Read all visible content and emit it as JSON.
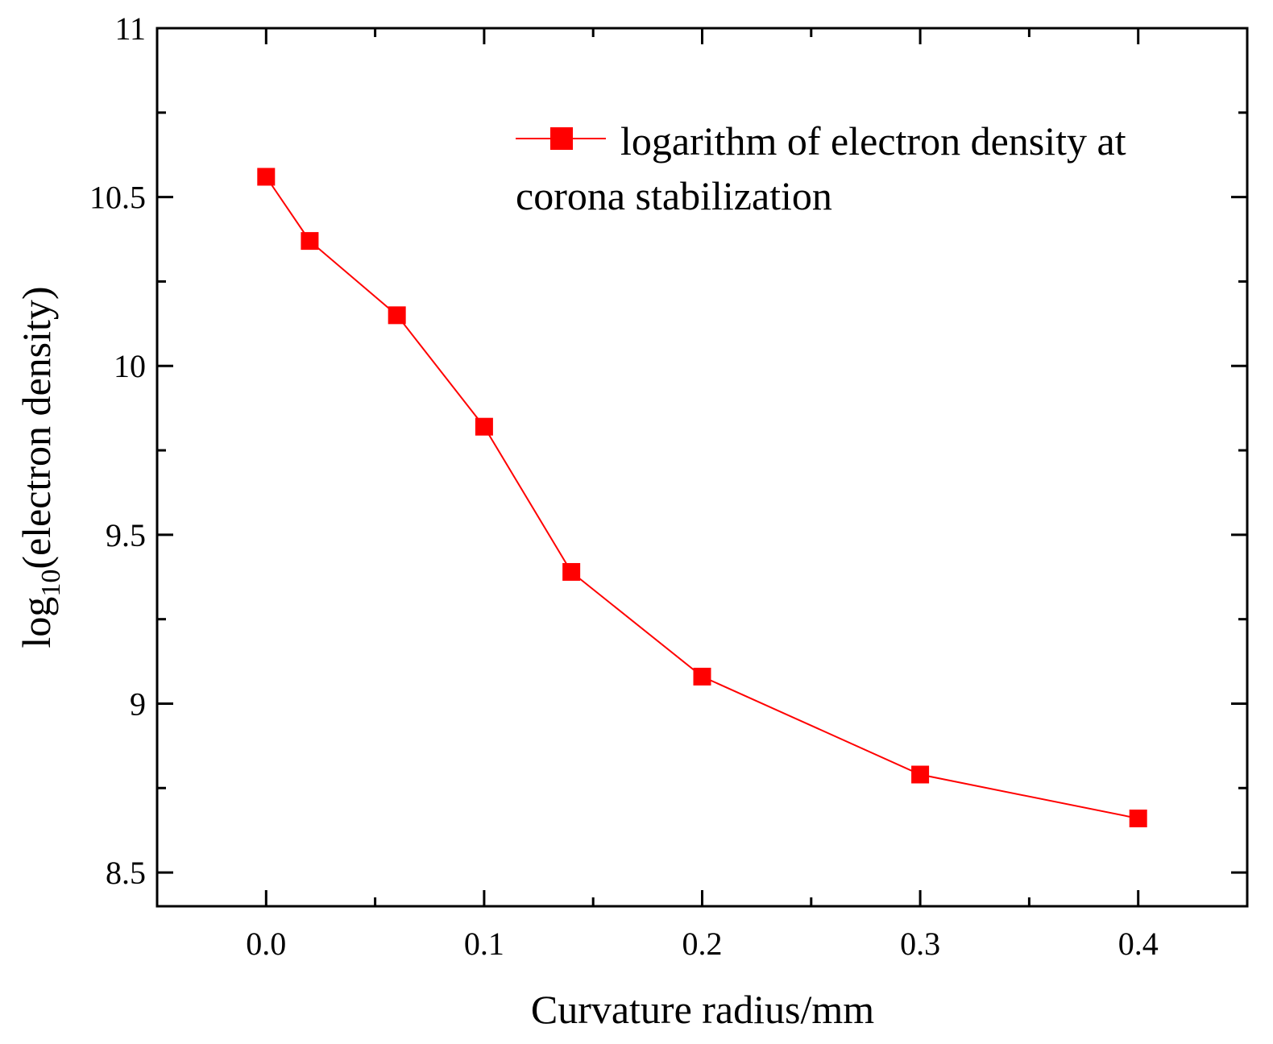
{
  "chart_data": {
    "type": "line",
    "title": "",
    "xlabel": "Curvature radius/mm",
    "ylabel": {
      "prefix": "log",
      "subscript": "10",
      "suffix": "(electron density)"
    },
    "xlim": [
      -0.05,
      0.45
    ],
    "ylim": [
      8.4,
      11.0
    ],
    "x_ticks": [
      0.0,
      0.1,
      0.2,
      0.3,
      0.4
    ],
    "x_tick_labels": [
      "0.0",
      "0.1",
      "0.2",
      "0.3",
      "0.4"
    ],
    "x_minor_ticks": [
      -0.05,
      0.05,
      0.15,
      0.25,
      0.35,
      0.45
    ],
    "y_ticks": [
      8.5,
      9.0,
      9.5,
      10.0,
      10.5,
      11.0
    ],
    "y_tick_labels": [
      "8.5",
      "9",
      "9.5",
      "10",
      "10.5",
      "11"
    ],
    "y_minor_ticks": [
      8.75,
      9.25,
      9.75,
      10.25,
      10.75
    ],
    "grid": false,
    "legend_position": "top-right",
    "series": [
      {
        "name": "logarithm of electron density at corona stabilization",
        "legend_lines": [
          "logarithm of electron density at",
          "corona stabilization"
        ],
        "color": "#ff0000",
        "marker": "square",
        "x": [
          0.0,
          0.02,
          0.06,
          0.1,
          0.14,
          0.2,
          0.3,
          0.4
        ],
        "y": [
          10.56,
          10.37,
          10.15,
          9.82,
          9.39,
          9.08,
          8.79,
          8.66
        ]
      }
    ]
  }
}
